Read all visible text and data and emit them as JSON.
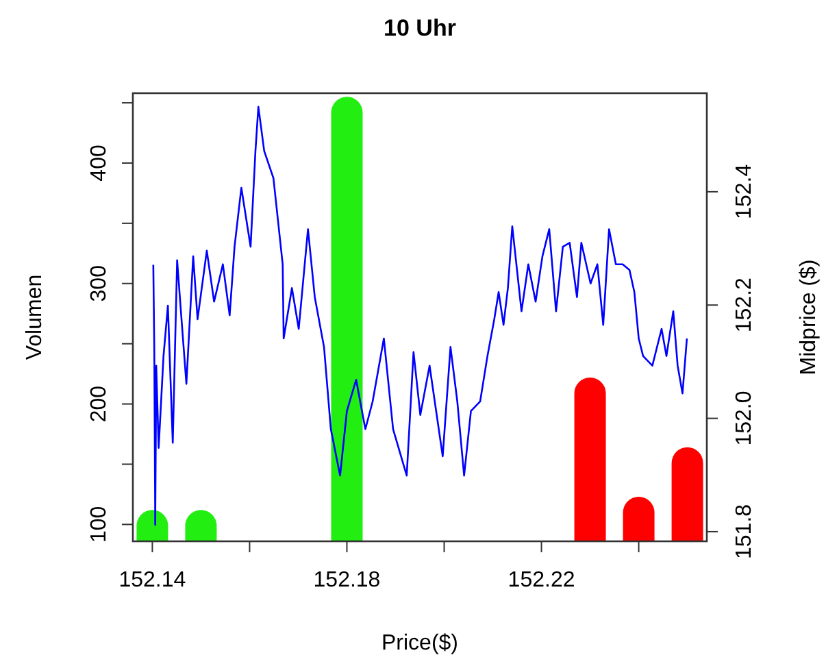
{
  "chart_data": {
    "type": "bar",
    "title": "10 Uhr",
    "xlabel": "Price($)",
    "ylabel": "Volumen",
    "y2label": "Midprice ($)",
    "xlim": [
      152.136,
      152.254
    ],
    "xticks": [
      152.14,
      {
        "value": 152.16,
        "label": null
      },
      152.18,
      {
        "value": 152.2,
        "label": null
      },
      152.22,
      {
        "value": 152.24,
        "label": null
      }
    ],
    "ylim": [
      86,
      458
    ],
    "yticks": [
      100,
      {
        "value": 150,
        "label": null
      },
      200,
      {
        "value": 250,
        "label": null
      },
      300,
      {
        "value": 350,
        "label": null
      },
      400,
      {
        "value": 450,
        "label": null
      }
    ],
    "y2lim": [
      151.783,
      152.574
    ],
    "y2ticks": [
      151.8,
      {
        "value": 152.0,
        "label": "152.0"
      },
      152.2,
      152.4
    ],
    "grid": false,
    "series": [
      {
        "x": [
          152.14,
          152.15,
          152.18,
          152.23,
          152.24,
          152.25
        ],
        "values": [
          112,
          112,
          455,
          222,
          123,
          164
        ],
        "colors": [
          "#22ee11",
          "#22ee11",
          "#22ee11",
          "#ff0000",
          "#ff0000",
          "#ff0000"
        ]
      },
      {
        "type": "line",
        "axis": "y2",
        "color": "#0000ff",
        "x": [
          152.1402,
          152.1404,
          152.1406,
          152.1408,
          152.1413,
          152.1423,
          152.1432,
          152.1442,
          152.1451,
          152.146,
          152.147,
          152.1484,
          152.1493,
          152.1512,
          152.1527,
          152.1545,
          152.1559,
          152.1569,
          152.1583,
          152.1602,
          152.1612,
          152.1618,
          152.163,
          152.1649,
          152.1668,
          152.167,
          152.1687,
          152.1701,
          152.172,
          152.1734,
          152.1753,
          152.1767,
          152.1786,
          152.18,
          152.1819,
          152.1838,
          152.1853,
          152.1876,
          152.1895,
          152.1923,
          152.1937,
          152.1951,
          152.197,
          152.1997,
          152.2013,
          152.2027,
          152.2041,
          152.2055,
          152.2074,
          152.2089,
          152.2103,
          152.2112,
          152.2122,
          152.2131,
          152.214,
          152.2159,
          152.2173,
          152.2188,
          152.2202,
          152.2216,
          152.223,
          152.2244,
          152.2258,
          152.2273,
          152.2282,
          152.2301,
          152.2315,
          152.2327,
          152.2339,
          152.2353,
          152.2367,
          152.2381,
          152.2391,
          152.24,
          152.2409,
          152.2428,
          152.2447,
          152.2457,
          152.2471,
          152.248,
          152.249,
          152.2499
        ],
        "values": [
          152.271,
          152.126,
          151.812,
          152.093,
          151.948,
          152.11,
          152.199,
          151.957,
          152.279,
          152.175,
          152.061,
          152.286,
          152.175,
          152.296,
          152.206,
          152.272,
          152.182,
          152.303,
          152.407,
          152.303,
          152.472,
          152.55,
          152.472,
          152.424,
          152.272,
          152.141,
          152.23,
          152.158,
          152.334,
          152.214,
          152.126,
          151.981,
          151.899,
          152.013,
          152.068,
          151.981,
          152.03,
          152.141,
          151.981,
          151.899,
          152.117,
          152.006,
          152.093,
          151.933,
          152.126,
          152.03,
          151.899,
          152.013,
          152.03,
          152.11,
          152.175,
          152.223,
          152.165,
          152.23,
          152.339,
          152.189,
          152.272,
          152.206,
          152.286,
          152.334,
          152.189,
          152.303,
          152.31,
          152.214,
          152.31,
          152.238,
          152.272,
          152.165,
          152.334,
          152.272,
          152.272,
          152.262,
          152.223,
          152.141,
          152.11,
          152.093,
          152.158,
          152.11,
          152.189,
          152.093,
          152.044,
          152.141
        ]
      }
    ]
  }
}
